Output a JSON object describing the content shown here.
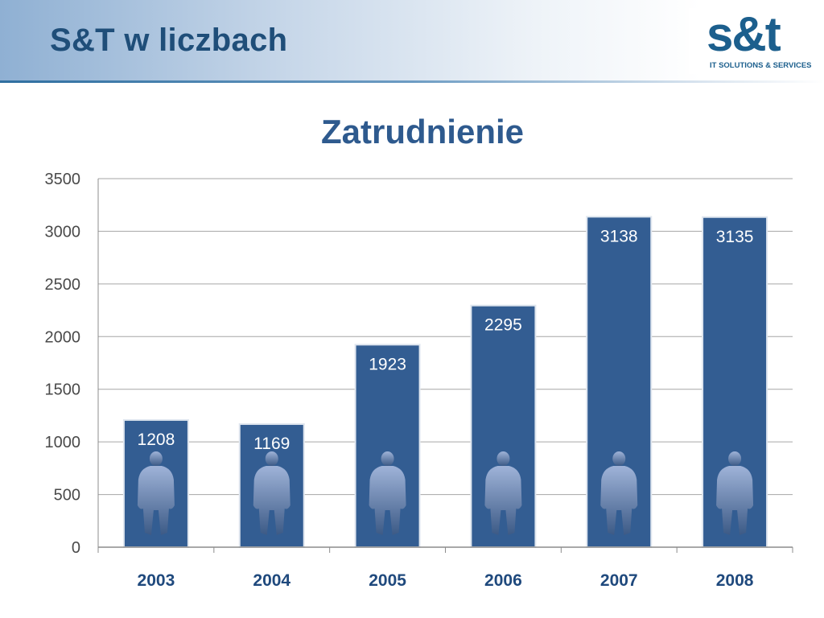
{
  "slide": {
    "title": "S&T w liczbach",
    "logo": {
      "mark": "s&t",
      "tagline": "IT SOLUTIONS & SERVICES"
    }
  },
  "colors": {
    "bar": "#335d92",
    "bar_border": "#dfe6ef",
    "gridline": "#a6a6a6",
    "axis": "#8c8c8c",
    "silhouette_top": "#9fb3d8",
    "silhouette_bottom": "#3c5a86"
  },
  "chart_data": {
    "type": "bar",
    "title": "Zatrudnienie",
    "categories": [
      "2003",
      "2004",
      "2005",
      "2006",
      "2007",
      "2008"
    ],
    "values": [
      1208,
      1169,
      1923,
      2295,
      3138,
      3135
    ],
    "ylim": [
      0,
      3500
    ],
    "yticks": [
      0,
      500,
      1000,
      1500,
      2000,
      2500,
      3000,
      3500
    ],
    "grid": true,
    "xlabel": "",
    "ylabel": "",
    "bar_icon": "person-silhouette-icon"
  }
}
